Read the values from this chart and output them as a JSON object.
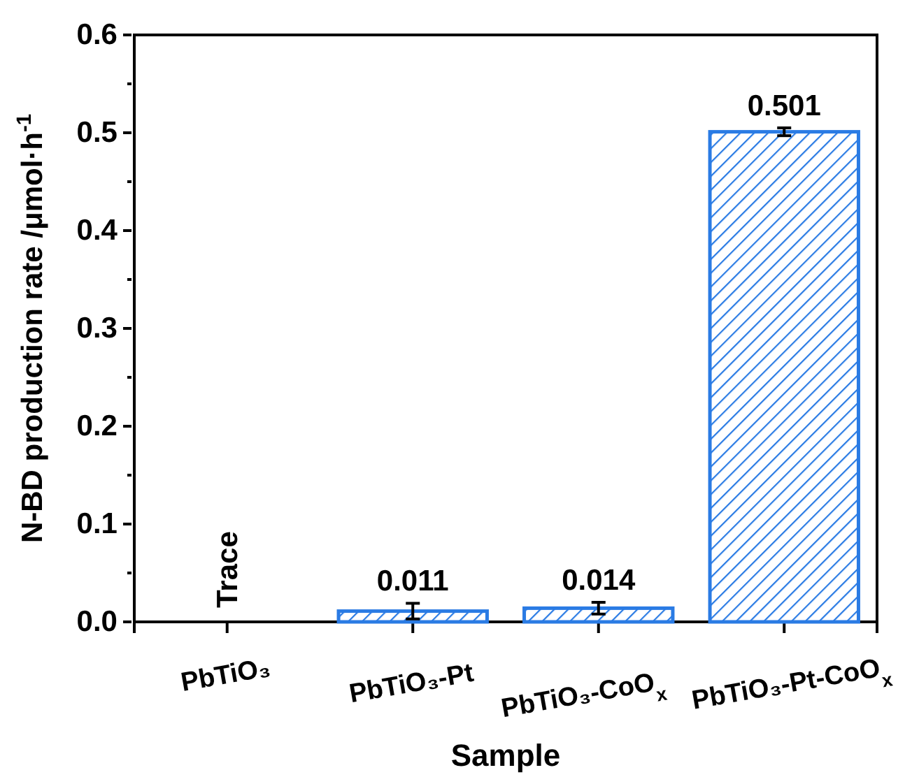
{
  "chart_data": {
    "type": "bar",
    "xlabel": "Sample",
    "ylabel": "N-BD production rate /μmol·h$^{-1}$",
    "categories": [
      "PbTiO₃",
      "PbTiO₃-Pt",
      "PbTiO₃-CoO$_{x}$",
      "PbTiO₃-Pt-CoO$_{x}$"
    ],
    "values": [
      null,
      0.011,
      0.014,
      0.501
    ],
    "errors": [
      null,
      0.008,
      0.006,
      0.004
    ],
    "value_labels": [
      "Trace",
      "0.011",
      "0.014",
      "0.501"
    ],
    "color": "#2a7be4",
    "ylim": [
      0,
      0.6
    ],
    "yticks": [
      {
        "value": 0,
        "label": "0.0"
      },
      {
        "value": 0.05,
        "label": null
      },
      {
        "value": 0.1,
        "label": "0.1"
      },
      {
        "value": 0.15,
        "label": null
      },
      {
        "value": 0.2,
        "label": "0.2"
      },
      {
        "value": 0.25,
        "label": null
      },
      {
        "value": 0.3,
        "label": "0.3"
      },
      {
        "value": 0.35,
        "label": null
      },
      {
        "value": 0.4,
        "label": "0.4"
      },
      {
        "value": 0.45,
        "label": null
      },
      {
        "value": 0.5,
        "label": "0.5"
      },
      {
        "value": 0.55,
        "label": null
      },
      {
        "value": 0.6,
        "label": "0.6"
      }
    ],
    "grid": false
  }
}
